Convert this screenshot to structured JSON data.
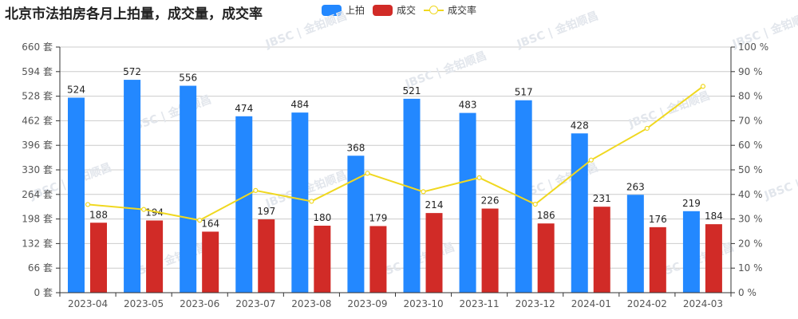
{
  "title": "北京市法拍房各月上拍量，成交量，成交率",
  "legend": [
    {
      "label": "上拍",
      "color": "#2388ff",
      "type": "bar"
    },
    {
      "label": "成交",
      "color": "#d12b27",
      "type": "bar"
    },
    {
      "label": "成交率",
      "color": "#f0d820",
      "type": "line"
    }
  ],
  "watermark": "JBSC | 金铂顺昌",
  "chart_data": {
    "type": "bar",
    "title": "北京市法拍房各月上拍量，成交量，成交率",
    "categories": [
      "2023-04",
      "2023-05",
      "2023-06",
      "2023-07",
      "2023-08",
      "2023-09",
      "2023-10",
      "2023-11",
      "2023-12",
      "2024-01",
      "2024-02",
      "2024-03"
    ],
    "series": [
      {
        "name": "上拍",
        "type": "bar",
        "axis": "left",
        "color": "#2388ff",
        "values": [
          524,
          572,
          556,
          474,
          484,
          368,
          521,
          483,
          517,
          428,
          263,
          219
        ]
      },
      {
        "name": "成交",
        "type": "bar",
        "axis": "left",
        "color": "#d12b27",
        "values": [
          188,
          194,
          164,
          197,
          180,
          179,
          214,
          226,
          186,
          231,
          176,
          184
        ]
      },
      {
        "name": "成交率",
        "type": "line",
        "axis": "right",
        "color": "#f0d820",
        "values": [
          35.9,
          33.9,
          29.5,
          41.6,
          37.2,
          48.6,
          41.1,
          46.8,
          36.0,
          54.0,
          66.9,
          84.0
        ]
      }
    ],
    "y_left": {
      "min": 0,
      "max": 660,
      "ticks": [
        0,
        66,
        132,
        198,
        264,
        330,
        396,
        462,
        528,
        594,
        660
      ],
      "unit": "套"
    },
    "y_right": {
      "min": 0,
      "max": 100,
      "ticks": [
        0,
        10,
        20,
        30,
        40,
        50,
        60,
        70,
        80,
        90,
        100
      ],
      "unit": "%"
    },
    "xlabel": "",
    "ylabel": "",
    "grid": true,
    "legend_position": "top"
  }
}
